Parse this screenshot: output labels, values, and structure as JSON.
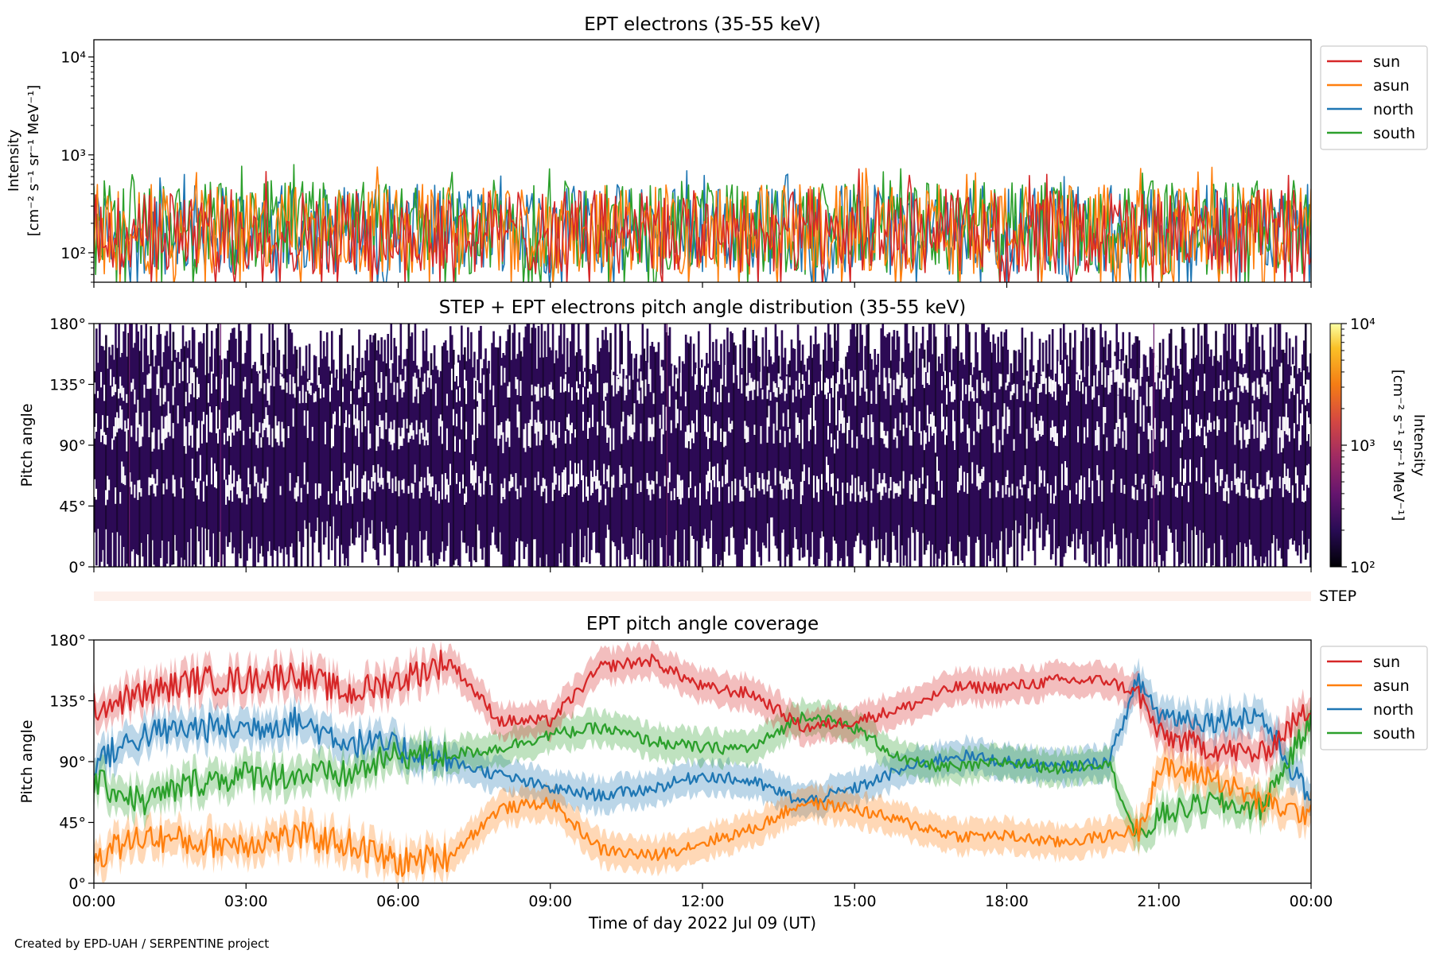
{
  "credit": "Created by EPD-UAH / SERPENTINE project",
  "time_axis": {
    "xlabel": "Time of day 2022 Jul 09 (UT)",
    "tick_hours": [
      0,
      3,
      6,
      9,
      12,
      15,
      18,
      21,
      24
    ],
    "tick_labels": [
      "00:00",
      "03:00",
      "06:00",
      "09:00",
      "12:00",
      "15:00",
      "18:00",
      "21:00",
      "00:00"
    ]
  },
  "chart_data": [
    {
      "type": "line",
      "title": "EPT electrons (35-55 keV)",
      "ylabel_line1": "Intensity",
      "ylabel_line2": "[cm⁻² s⁻¹ sr⁻¹ MeV⁻¹]",
      "yscale": "log",
      "ylim": [
        50,
        15000
      ],
      "xlim": [
        0,
        24
      ],
      "ytick_values": [
        100,
        1000,
        10000
      ],
      "ytick_labels": [
        "10²",
        "10³",
        "10⁴"
      ],
      "legend_position": "upper-right-outside",
      "series": [
        {
          "name": "sun",
          "color": "#d62728",
          "typical_low": 60,
          "typical_high": 450,
          "peak": 750
        },
        {
          "name": "asun",
          "color": "#ff7f0e",
          "typical_low": 60,
          "typical_high": 500,
          "peak": 760
        },
        {
          "name": "north",
          "color": "#1f77b4",
          "typical_low": 60,
          "typical_high": 500,
          "peak": 700
        },
        {
          "name": "south",
          "color": "#2ca02c",
          "typical_low": 60,
          "typical_high": 550,
          "peak": 820
        }
      ]
    },
    {
      "type": "heatmap",
      "title": "STEP + EPT electrons pitch angle distribution (35-55 keV)",
      "ylabel": "Pitch angle",
      "ylim": [
        0,
        180
      ],
      "xlim": [
        0,
        24
      ],
      "ytick_values": [
        0,
        45,
        90,
        135,
        180
      ],
      "ytick_labels": [
        "0°",
        "45°",
        "90°",
        "135°",
        "180°"
      ],
      "colorscale": "inferno",
      "colorbar_label_line1": "Intensity",
      "colorbar_label_line2": "[cm⁻² s⁻¹ sr⁻¹ MeV⁻¹]",
      "colorbar_range": [
        100,
        10000
      ],
      "colorbar_tick_values": [
        100,
        1000,
        10000
      ],
      "colorbar_tick_labels": [
        "10²",
        "10³",
        "10⁴"
      ],
      "step_label": "STEP",
      "dominant_color": "#2c0a55"
    },
    {
      "type": "line",
      "title": "EPT pitch angle coverage",
      "ylabel": "Pitch angle",
      "ylim": [
        0,
        180
      ],
      "xlim": [
        0,
        24
      ],
      "ytick_values": [
        0,
        45,
        90,
        135,
        180
      ],
      "ytick_labels": [
        "0°",
        "45°",
        "90°",
        "135°",
        "180°"
      ],
      "legend_position": "upper-right-outside",
      "series": [
        {
          "name": "sun",
          "color": "#d62728",
          "x": [
            0,
            1,
            2,
            3,
            4,
            5,
            6,
            7,
            8,
            9,
            10,
            11,
            12,
            13,
            14,
            15,
            16,
            17,
            18,
            19,
            20,
            20.6,
            21,
            22,
            23,
            24
          ],
          "y": [
            130,
            140,
            150,
            150,
            155,
            140,
            150,
            165,
            120,
            120,
            160,
            165,
            145,
            140,
            115,
            120,
            130,
            145,
            145,
            150,
            150,
            140,
            110,
            100,
            95,
            130
          ]
        },
        {
          "name": "asun",
          "color": "#ff7f0e",
          "x": [
            0,
            1,
            2,
            3,
            4,
            5,
            6,
            7,
            8,
            9,
            10,
            11,
            12,
            13,
            14,
            15,
            16,
            17,
            18,
            19,
            20,
            20.6,
            21,
            22,
            23,
            24
          ],
          "y": [
            20,
            35,
            30,
            30,
            35,
            30,
            15,
            20,
            55,
            60,
            25,
            20,
            30,
            40,
            60,
            55,
            45,
            35,
            35,
            30,
            35,
            40,
            85,
            80,
            60,
            50
          ]
        },
        {
          "name": "north",
          "color": "#1f77b4",
          "x": [
            0,
            1,
            2,
            3,
            4,
            5,
            6,
            7,
            8,
            9,
            10,
            11,
            12,
            13,
            14,
            15,
            16,
            17,
            18,
            19,
            20,
            20.6,
            21,
            22,
            23,
            24
          ],
          "y": [
            90,
            110,
            115,
            115,
            120,
            105,
            100,
            90,
            80,
            70,
            65,
            70,
            80,
            75,
            60,
            70,
            85,
            95,
            90,
            85,
            90,
            150,
            125,
            120,
            125,
            60
          ]
        },
        {
          "name": "south",
          "color": "#2ca02c",
          "x": [
            0,
            1,
            2,
            3,
            4,
            5,
            6,
            7,
            8,
            9,
            10,
            11,
            12,
            13,
            14,
            15,
            16,
            17,
            18,
            19,
            20,
            20.6,
            21,
            22,
            23,
            24
          ],
          "y": [
            75,
            60,
            75,
            80,
            80,
            80,
            95,
            95,
            100,
            110,
            115,
            105,
            100,
            100,
            125,
            115,
            90,
            85,
            90,
            85,
            90,
            30,
            50,
            60,
            55,
            120
          ]
        }
      ]
    }
  ]
}
